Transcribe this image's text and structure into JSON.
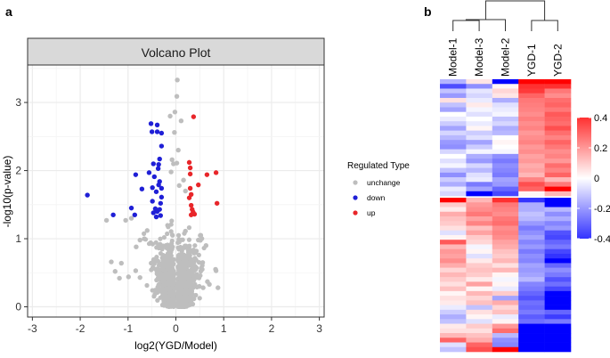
{
  "panels": {
    "a": "a",
    "b": "b"
  },
  "chart_data": [
    {
      "type": "scatter",
      "title": "Volcano Plot",
      "xlabel": "log2(YGD/Model)",
      "ylabel": "-log10(p-value)",
      "xlim": [
        -3.1,
        3.1
      ],
      "ylim": [
        -0.15,
        3.55
      ],
      "xticks": [
        -3,
        -2,
        -1,
        0,
        1,
        2,
        3
      ],
      "yticks": [
        0,
        1,
        2,
        3
      ],
      "grid": true,
      "legend": {
        "title": "Regulated Type",
        "placement": "right",
        "entries": [
          {
            "label": "unchange",
            "color": "#bebebe"
          },
          {
            "label": "down",
            "color": "#1f1fd6"
          },
          {
            "label": "up",
            "color": "#e8262a"
          }
        ]
      },
      "series": [
        {
          "name": "down",
          "color": "#1f1fd6",
          "points": [
            [
              -1.85,
              1.64
            ],
            [
              -1.31,
              1.35
            ],
            [
              -0.93,
              1.45
            ],
            [
              -0.86,
              1.35
            ],
            [
              -0.84,
              1.94
            ],
            [
              -0.71,
              1.73
            ],
            [
              -0.56,
              1.97
            ],
            [
              -0.52,
              2.69
            ],
            [
              -0.5,
              2.57
            ],
            [
              -0.39,
              2.67
            ],
            [
              -0.39,
              2.57
            ],
            [
              -0.3,
              2.55
            ],
            [
              -0.3,
              2.36
            ],
            [
              -0.34,
              2.17
            ],
            [
              -0.36,
              2.09
            ],
            [
              -0.47,
              2.1
            ],
            [
              -0.37,
              2.03
            ],
            [
              -0.45,
              1.91
            ],
            [
              -0.34,
              1.84
            ],
            [
              -0.49,
              1.75
            ],
            [
              -0.41,
              1.69
            ],
            [
              -0.36,
              1.79
            ],
            [
              -0.3,
              1.74
            ],
            [
              -0.3,
              1.61
            ],
            [
              -0.49,
              1.55
            ],
            [
              -0.32,
              1.52
            ],
            [
              -0.43,
              1.44
            ],
            [
              -0.39,
              1.4
            ],
            [
              -0.34,
              1.43
            ],
            [
              -0.47,
              1.38
            ],
            [
              -0.41,
              1.32
            ],
            [
              -0.32,
              1.34
            ]
          ]
        },
        {
          "name": "up",
          "color": "#e8262a",
          "points": [
            [
              0.37,
              2.79
            ],
            [
              0.28,
              2.12
            ],
            [
              0.3,
              2.04
            ],
            [
              0.3,
              1.95
            ],
            [
              0.65,
              1.94
            ],
            [
              0.84,
              1.97
            ],
            [
              0.47,
              1.79
            ],
            [
              0.3,
              1.74
            ],
            [
              0.32,
              1.65
            ],
            [
              0.28,
              1.6
            ],
            [
              0.86,
              1.52
            ],
            [
              0.32,
              1.49
            ],
            [
              0.34,
              1.43
            ],
            [
              0.36,
              1.39
            ],
            [
              0.32,
              1.35
            ],
            [
              0.39,
              1.36
            ]
          ]
        },
        {
          "name": "unchange",
          "color": "#bebebe",
          "points": [
            [
              0.03,
              3.33
            ],
            [
              0.02,
              3.09
            ],
            [
              -0.02,
              2.86
            ],
            [
              -0.12,
              2.8
            ],
            [
              0.11,
              2.73
            ],
            [
              -0.03,
              2.56
            ],
            [
              0.05,
              2.3
            ],
            [
              -0.08,
              2.16
            ],
            [
              -0.05,
              2.1
            ],
            [
              0.02,
              2.11
            ],
            [
              -0.1,
              1.98
            ],
            [
              0.16,
              1.86
            ],
            [
              0.07,
              1.78
            ],
            [
              0.2,
              1.7
            ],
            [
              -1.45,
              1.27
            ],
            [
              -1.05,
              1.27
            ],
            [
              -0.93,
              1.3
            ],
            [
              -0.6,
              1.12
            ],
            [
              -0.66,
              1.0
            ],
            [
              -0.75,
              0.98
            ],
            [
              -0.83,
              0.88
            ],
            [
              -1.14,
              0.64
            ],
            [
              -1.27,
              0.52
            ],
            [
              -1.35,
              0.66
            ],
            [
              -1.18,
              0.42
            ],
            [
              -0.99,
              0.44
            ],
            [
              -0.84,
              0.53
            ],
            [
              -0.75,
              0.43
            ],
            [
              0.52,
              1.05
            ],
            [
              0.47,
              0.98
            ],
            [
              0.63,
              0.9
            ],
            [
              0.56,
              0.65
            ],
            [
              0.55,
              0.55
            ],
            [
              0.83,
              0.55
            ],
            [
              0.84,
              0.53
            ],
            [
              0.66,
              0.37
            ],
            [
              0.7,
              0.33
            ],
            [
              0.88,
              0.28
            ],
            [
              0.57,
              0.28
            ],
            [
              0.49,
              0.3
            ]
          ]
        }
      ],
      "background_cloud": {
        "name": "unchange",
        "count": 1400,
        "note": "dense near-zero cloud"
      }
    },
    {
      "type": "heatmap",
      "columns": [
        "Model-1",
        "Model-3",
        "Model-2",
        "YGD-1",
        "YGD-2"
      ],
      "dendrogram": {
        "top_split": [
          [
            "Model-1",
            "Model-3",
            "Model-2"
          ],
          [
            "YGD-1",
            "YGD-2"
          ]
        ],
        "inner": [
          [
            "Model-1",
            "Model-3"
          ]
        ]
      },
      "colorbar": {
        "ticks": [
          0.4,
          0.2,
          0,
          -0.2,
          -0.4
        ],
        "range": [
          -0.4,
          0.4
        ],
        "low": "#3333ff",
        "mid": "#ffffff",
        "high": "#ff3030"
      },
      "rows": [
        [
          -0.15,
          0.05,
          -0.45,
          0.45,
          0.45
        ],
        [
          -0.35,
          -0.22,
          0.02,
          0.42,
          0.4
        ],
        [
          -0.12,
          -0.05,
          0.08,
          0.38,
          0.26
        ],
        [
          -0.2,
          -0.08,
          0.05,
          0.3,
          0.22
        ],
        [
          0.06,
          -0.04,
          -0.16,
          0.26,
          0.28
        ],
        [
          -0.12,
          0.04,
          -0.06,
          0.25,
          0.3
        ],
        [
          -0.18,
          -0.02,
          -0.04,
          0.24,
          0.26
        ],
        [
          0.0,
          -0.06,
          -0.02,
          0.22,
          0.32
        ],
        [
          -0.04,
          0.0,
          -0.12,
          0.25,
          0.3
        ],
        [
          -0.1,
          -0.04,
          -0.08,
          0.22,
          0.28
        ],
        [
          -0.18,
          0.02,
          -0.16,
          0.24,
          0.34
        ],
        [
          -0.08,
          -0.1,
          -0.14,
          0.2,
          0.28
        ],
        [
          -0.14,
          -0.06,
          0.0,
          0.22,
          0.24
        ],
        [
          -0.2,
          -0.18,
          0.02,
          0.24,
          0.3
        ],
        [
          -0.22,
          -0.1,
          0.0,
          0.2,
          0.26
        ],
        [
          -0.08,
          -0.02,
          -0.02,
          0.22,
          0.22
        ],
        [
          0.0,
          -0.16,
          -0.22,
          0.18,
          0.24
        ],
        [
          -0.06,
          -0.2,
          -0.26,
          0.2,
          0.2
        ],
        [
          -0.02,
          -0.08,
          -0.22,
          0.16,
          0.28
        ],
        [
          -0.12,
          -0.14,
          -0.24,
          0.18,
          0.24
        ],
        [
          -0.22,
          -0.06,
          -0.26,
          0.14,
          0.3
        ],
        [
          -0.1,
          -0.04,
          -0.18,
          0.24,
          0.14
        ],
        [
          -0.16,
          -0.26,
          -0.2,
          0.34,
          0.26
        ],
        [
          -0.04,
          -0.18,
          -0.3,
          0.3,
          0.45
        ],
        [
          -0.08,
          -0.45,
          -0.36,
          0.02,
          0.14
        ],
        [
          0.45,
          0.14,
          0.42,
          -0.4,
          -0.45
        ],
        [
          0.1,
          0.2,
          0.26,
          -0.16,
          -0.45
        ],
        [
          0.04,
          0.22,
          0.24,
          -0.16,
          -0.14
        ],
        [
          0.16,
          0.26,
          0.22,
          -0.12,
          -0.22
        ],
        [
          0.12,
          0.18,
          0.26,
          -0.14,
          -0.16
        ],
        [
          0.1,
          0.24,
          0.28,
          -0.2,
          -0.24
        ],
        [
          0.06,
          0.12,
          0.22,
          -0.26,
          -0.2
        ],
        [
          -0.06,
          0.18,
          0.24,
          -0.22,
          -0.34
        ],
        [
          0.02,
          0.1,
          0.22,
          -0.18,
          -0.36
        ],
        [
          0.32,
          0.08,
          0.18,
          -0.24,
          -0.3
        ],
        [
          0.14,
          -0.02,
          0.16,
          -0.2,
          -0.26
        ],
        [
          0.2,
          0.02,
          0.12,
          -0.26,
          -0.36
        ],
        [
          0.18,
          -0.06,
          0.1,
          -0.22,
          -0.42
        ],
        [
          0.22,
          0.04,
          0.14,
          -0.24,
          -0.45
        ],
        [
          0.16,
          0.1,
          0.06,
          -0.18,
          -0.3
        ],
        [
          0.08,
          0.12,
          0.14,
          -0.2,
          -0.22
        ],
        [
          0.14,
          0.1,
          0.02,
          -0.18,
          -0.26
        ],
        [
          0.1,
          0.04,
          -0.02,
          -0.14,
          -0.34
        ],
        [
          0.06,
          0.18,
          0.02,
          -0.24,
          -0.28
        ],
        [
          0.12,
          0.02,
          -0.04,
          -0.26,
          -0.36
        ],
        [
          0.02,
          0.14,
          0.1,
          -0.3,
          -0.45
        ],
        [
          0.06,
          0.08,
          -0.18,
          -0.34,
          -0.45
        ],
        [
          0.04,
          0.12,
          0.16,
          -0.28,
          -0.45
        ],
        [
          -0.04,
          -0.12,
          0.08,
          -0.3,
          -0.45
        ],
        [
          -0.1,
          0.06,
          0.12,
          -0.26,
          -0.3
        ],
        [
          -0.16,
          0.02,
          -0.04,
          -0.32,
          -0.38
        ],
        [
          -0.12,
          -0.06,
          0.02,
          -0.28,
          -0.26
        ],
        [
          0.04,
          0.1,
          0.2,
          -0.45,
          -0.45
        ],
        [
          0.06,
          0.06,
          0.28,
          -0.45,
          -0.45
        ],
        [
          0.14,
          0.12,
          -0.14,
          -0.45,
          -0.45
        ],
        [
          0.3,
          0.16,
          -0.22,
          -0.45,
          -0.45
        ],
        [
          -0.06,
          0.3,
          -0.24,
          -0.45,
          -0.45
        ],
        [
          -0.12,
          0.34,
          0.45,
          -0.45,
          -0.45
        ]
      ],
      "split_after_row": 24
    }
  ]
}
